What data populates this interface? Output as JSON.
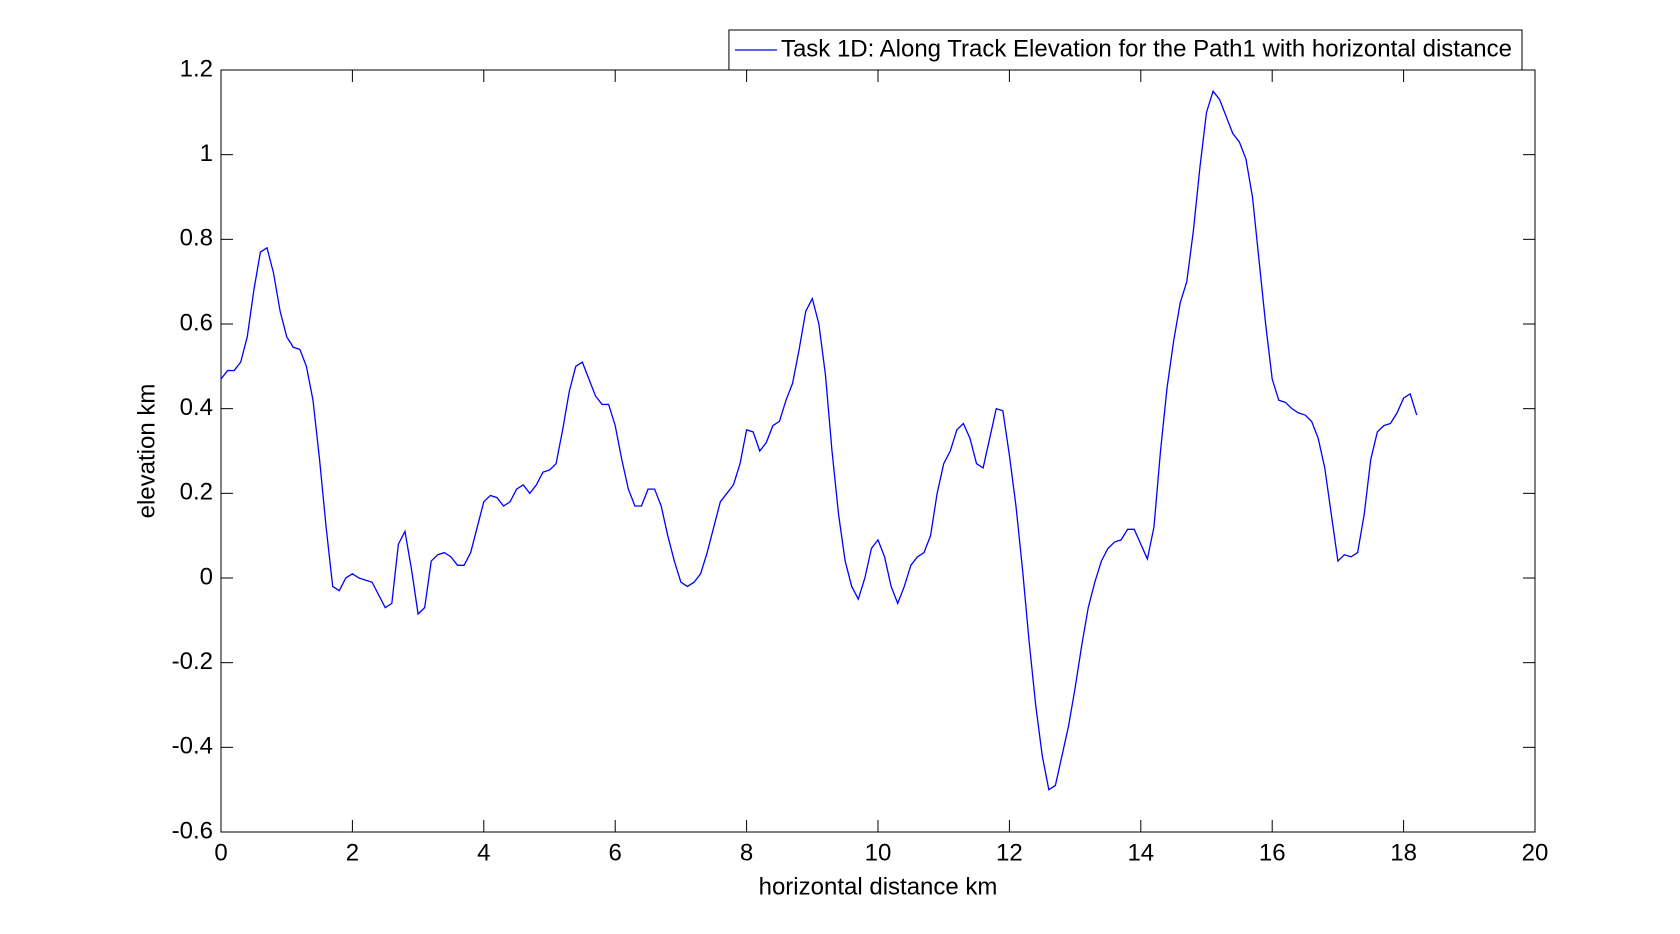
{
  "chart_data": {
    "type": "line",
    "xlabel": "horizontal distance km",
    "ylabel": "elevation km",
    "x": [
      0.0,
      0.1,
      0.2,
      0.3,
      0.4,
      0.5,
      0.6,
      0.7,
      0.8,
      0.9,
      1.0,
      1.1,
      1.2,
      1.3,
      1.4,
      1.5,
      1.6,
      1.7,
      1.8,
      1.9,
      2.0,
      2.1,
      2.2,
      2.3,
      2.4,
      2.5,
      2.6,
      2.7,
      2.8,
      2.9,
      3.0,
      3.1,
      3.2,
      3.3,
      3.4,
      3.5,
      3.6,
      3.7,
      3.8,
      3.9,
      4.0,
      4.1,
      4.2,
      4.3,
      4.4,
      4.5,
      4.6,
      4.7,
      4.8,
      4.9,
      5.0,
      5.1,
      5.2,
      5.3,
      5.4,
      5.5,
      5.6,
      5.7,
      5.8,
      5.9,
      6.0,
      6.1,
      6.2,
      6.3,
      6.4,
      6.5,
      6.6,
      6.7,
      6.8,
      6.9,
      7.0,
      7.1,
      7.2,
      7.3,
      7.4,
      7.5,
      7.6,
      7.7,
      7.8,
      7.9,
      8.0,
      8.1,
      8.2,
      8.3,
      8.4,
      8.5,
      8.6,
      8.7,
      8.8,
      8.9,
      9.0,
      9.1,
      9.2,
      9.3,
      9.4,
      9.5,
      9.6,
      9.7,
      9.8,
      9.9,
      10.0,
      10.1,
      10.2,
      10.3,
      10.4,
      10.5,
      10.6,
      10.7,
      10.8,
      10.9,
      11.0,
      11.1,
      11.2,
      11.3,
      11.4,
      11.5,
      11.6,
      11.7,
      11.8,
      11.9,
      12.0,
      12.1,
      12.2,
      12.3,
      12.4,
      12.5,
      12.6,
      12.7,
      12.8,
      12.9,
      13.0,
      13.1,
      13.2,
      13.3,
      13.4,
      13.5,
      13.6,
      13.7,
      13.8,
      13.9,
      14.0,
      14.1,
      14.2,
      14.3,
      14.4,
      14.5,
      14.6,
      14.7,
      14.8,
      14.9,
      15.0,
      15.1,
      15.2,
      15.3,
      15.4,
      15.5,
      15.6,
      15.7,
      15.8,
      15.9,
      16.0,
      16.1,
      16.2,
      16.3,
      16.4,
      16.5,
      16.6,
      16.7,
      16.8,
      16.9,
      17.0,
      17.1,
      17.2,
      17.3,
      17.4,
      17.5,
      17.6,
      17.7,
      17.8,
      17.9,
      18.0,
      18.1,
      18.2
    ],
    "series": [
      {
        "name": "Task 1D: Along Track Elevation for the Path1 with horizontal distance",
        "color": "#0000ff",
        "values": [
          0.47,
          0.49,
          0.49,
          0.51,
          0.57,
          0.68,
          0.77,
          0.78,
          0.72,
          0.63,
          0.57,
          0.545,
          0.54,
          0.5,
          0.42,
          0.28,
          0.12,
          -0.02,
          -0.03,
          0.0,
          0.01,
          0.0,
          -0.005,
          -0.01,
          -0.04,
          -0.07,
          -0.06,
          0.08,
          0.11,
          0.02,
          -0.085,
          -0.07,
          0.04,
          0.055,
          0.06,
          0.05,
          0.03,
          0.03,
          0.06,
          0.12,
          0.18,
          0.195,
          0.19,
          0.17,
          0.18,
          0.21,
          0.22,
          0.2,
          0.22,
          0.25,
          0.255,
          0.27,
          0.35,
          0.44,
          0.5,
          0.51,
          0.47,
          0.43,
          0.41,
          0.41,
          0.36,
          0.28,
          0.21,
          0.17,
          0.17,
          0.21,
          0.21,
          0.17,
          0.1,
          0.04,
          -0.01,
          -0.02,
          -0.01,
          0.01,
          0.06,
          0.12,
          0.18,
          0.2,
          0.22,
          0.27,
          0.35,
          0.345,
          0.3,
          0.32,
          0.36,
          0.37,
          0.42,
          0.46,
          0.54,
          0.63,
          0.66,
          0.6,
          0.48,
          0.3,
          0.15,
          0.04,
          -0.02,
          -0.05,
          0.0,
          0.07,
          0.09,
          0.05,
          -0.02,
          -0.06,
          -0.02,
          0.03,
          0.05,
          0.06,
          0.1,
          0.2,
          0.27,
          0.3,
          0.35,
          0.365,
          0.33,
          0.27,
          0.26,
          0.33,
          0.4,
          0.395,
          0.29,
          0.17,
          0.02,
          -0.15,
          -0.3,
          -0.42,
          -0.5,
          -0.49,
          -0.42,
          -0.35,
          -0.26,
          -0.16,
          -0.07,
          -0.01,
          0.04,
          0.07,
          0.085,
          0.09,
          0.115,
          0.115,
          0.08,
          0.045,
          0.12,
          0.3,
          0.45,
          0.56,
          0.65,
          0.7,
          0.82,
          0.97,
          1.1,
          1.15,
          1.13,
          1.09,
          1.05,
          1.03,
          0.99,
          0.9,
          0.75,
          0.6,
          0.47,
          0.42,
          0.415,
          0.4,
          0.39,
          0.385,
          0.37,
          0.33,
          0.26,
          0.15,
          0.04,
          0.055,
          0.05,
          0.06,
          0.15,
          0.28,
          0.345,
          0.36,
          0.365,
          0.39,
          0.425,
          0.435,
          0.385
        ]
      }
    ],
    "xlim": [
      0,
      20
    ],
    "xticks": [
      0,
      2,
      4,
      6,
      8,
      10,
      12,
      14,
      16,
      18,
      20
    ],
    "ylim": [
      -0.6,
      1.2
    ],
    "yticks": [
      -0.6,
      -0.4,
      -0.2,
      0,
      0.2,
      0.4,
      0.6,
      0.8,
      1,
      1.2
    ],
    "grid": false,
    "legend": "top-right"
  }
}
